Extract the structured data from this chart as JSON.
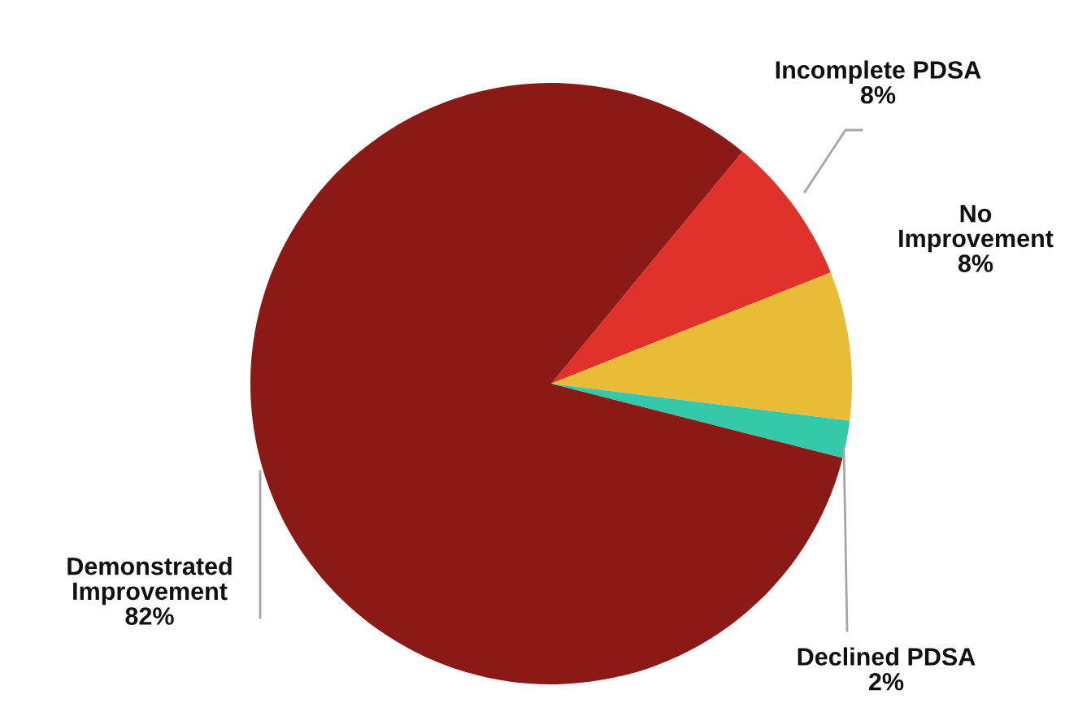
{
  "chart_data": {
    "type": "pie",
    "categories": [
      "Incomplete PDSA",
      "No\nImprovement",
      "Declined PDSA",
      "Demonstrated\nImprovement"
    ],
    "values": [
      8,
      8,
      2,
      82
    ],
    "value_labels": [
      "8%",
      "8%",
      "2%",
      "82%"
    ],
    "colors": [
      "#e0312b",
      "#e8bc37",
      "#34c9a8",
      "#8b1916"
    ],
    "legend": false
  }
}
